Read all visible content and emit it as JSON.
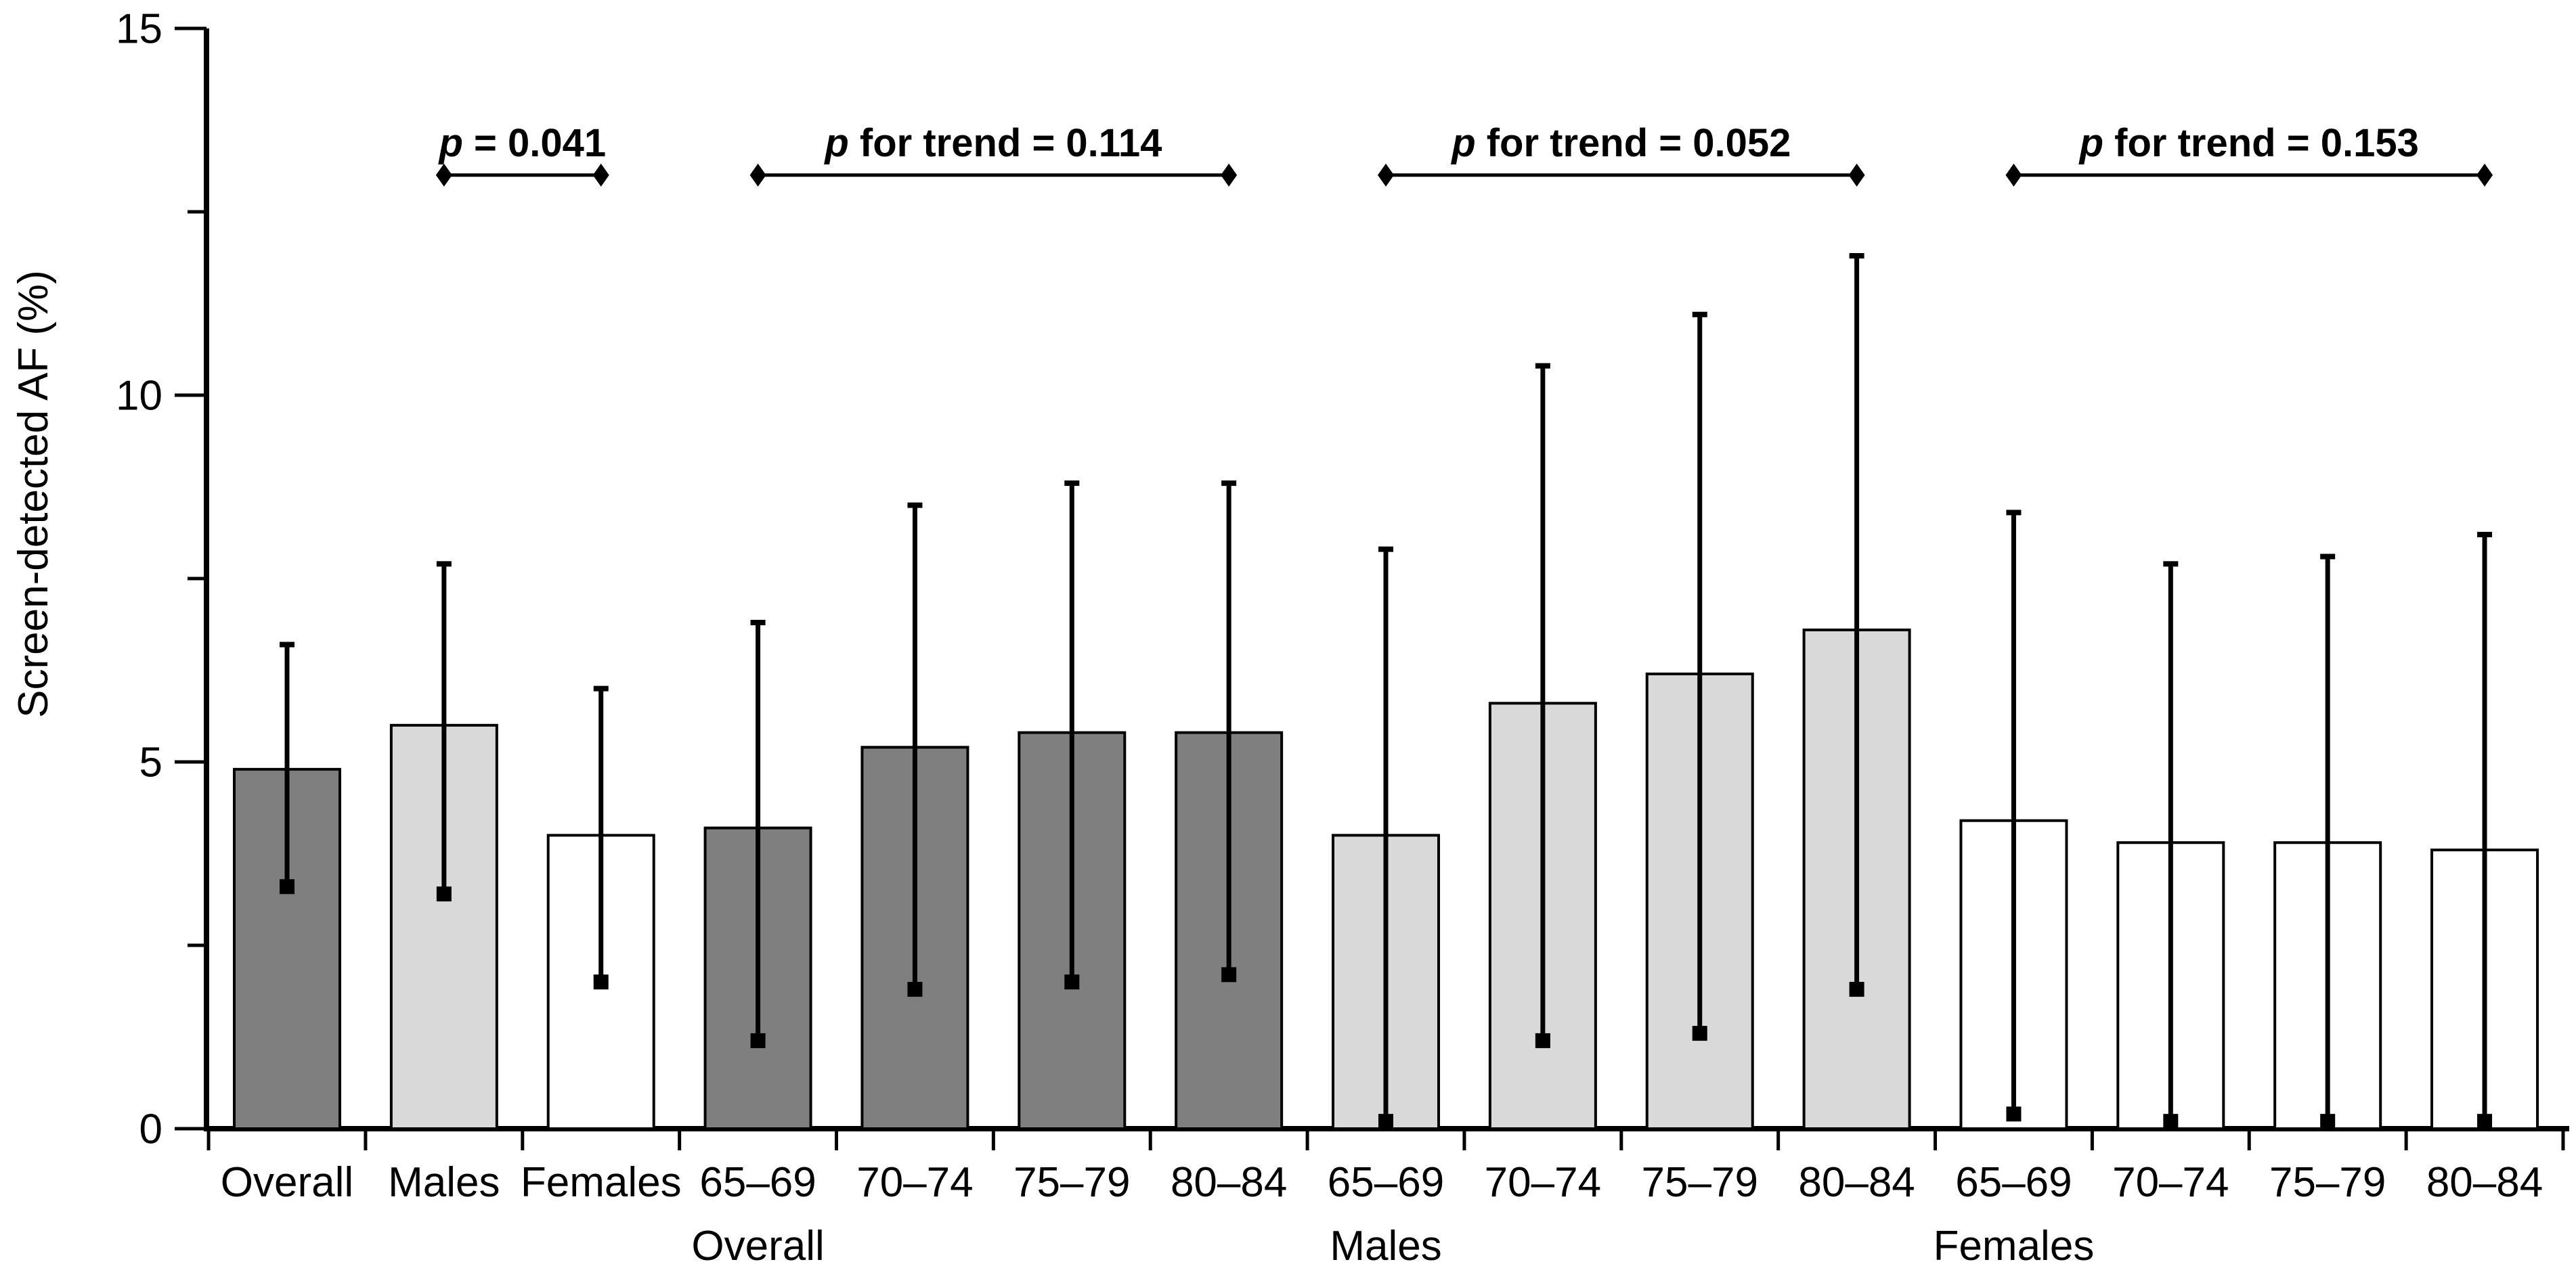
{
  "page": {
    "background_color": "#FFFFFF"
  },
  "chart_data": {
    "type": "bar",
    "title": "",
    "xlabel": "",
    "ylabel": "Screen-detected AF (%)",
    "ylim": [
      0,
      15
    ],
    "yticks_major": [
      0,
      5,
      10,
      15
    ],
    "yticks_minor": [
      2.5,
      7.5,
      12.5
    ],
    "grid": false,
    "legend": "none",
    "error_bars": "asymmetric caps: dash on top, filled square on bottom",
    "fill_colors": {
      "dark": "#7F7F7F",
      "light": "#D9D9D9",
      "white": "#FFFFFF"
    },
    "bar_border_color": "#000000",
    "error_bar_color": "#000000",
    "annotation_color": "#000000",
    "bars": [
      {
        "category": "Overall",
        "group": "",
        "fill": "dark",
        "value": 4.9,
        "ci_low": 3.3,
        "ci_high": 6.6
      },
      {
        "category": "Males",
        "group": "",
        "fill": "light",
        "value": 5.5,
        "ci_low": 3.2,
        "ci_high": 7.7
      },
      {
        "category": "Females",
        "group": "",
        "fill": "white",
        "value": 4.0,
        "ci_low": 2.0,
        "ci_high": 6.0
      },
      {
        "category": "65–69",
        "group": "Overall",
        "fill": "dark",
        "value": 4.1,
        "ci_low": 1.2,
        "ci_high": 6.9
      },
      {
        "category": "70–74",
        "group": "Overall",
        "fill": "dark",
        "value": 5.2,
        "ci_low": 1.9,
        "ci_high": 8.5
      },
      {
        "category": "75–79",
        "group": "Overall",
        "fill": "dark",
        "value": 5.4,
        "ci_low": 2.0,
        "ci_high": 8.8
      },
      {
        "category": "80–84",
        "group": "Overall",
        "fill": "dark",
        "value": 5.4,
        "ci_low": 2.1,
        "ci_high": 8.8
      },
      {
        "category": "65–69",
        "group": "Males",
        "fill": "light",
        "value": 4.0,
        "ci_low": 0.1,
        "ci_high": 7.9
      },
      {
        "category": "70–74",
        "group": "Males",
        "fill": "light",
        "value": 5.8,
        "ci_low": 1.2,
        "ci_high": 10.4
      },
      {
        "category": "75–79",
        "group": "Males",
        "fill": "light",
        "value": 6.2,
        "ci_low": 1.3,
        "ci_high": 11.1
      },
      {
        "category": "80–84",
        "group": "Males",
        "fill": "light",
        "value": 6.8,
        "ci_low": 1.9,
        "ci_high": 11.9
      },
      {
        "category": "65–69",
        "group": "Females",
        "fill": "white",
        "value": 4.2,
        "ci_low": 0.2,
        "ci_high": 8.4
      },
      {
        "category": "70–74",
        "group": "Females",
        "fill": "white",
        "value": 3.9,
        "ci_low": 0.1,
        "ci_high": 7.7
      },
      {
        "category": "75–79",
        "group": "Females",
        "fill": "white",
        "value": 3.9,
        "ci_low": 0.1,
        "ci_high": 7.8
      },
      {
        "category": "80–84",
        "group": "Females",
        "fill": "white",
        "value": 3.8,
        "ci_low": 0.1,
        "ci_high": 8.1
      }
    ],
    "group_axis_labels": [
      {
        "label": "Overall",
        "under_bar": 3
      },
      {
        "label": "Males",
        "under_bar": 7
      },
      {
        "label": "Females",
        "under_bar": 11
      }
    ],
    "annotations": [
      {
        "text_italic": "p",
        "text_rest": " = 0.041",
        "from_bar": 1,
        "to_bar": 2,
        "y": 13.0
      },
      {
        "text_italic": "p",
        "text_rest": " for trend = 0.114",
        "from_bar": 3,
        "to_bar": 6,
        "y": 13.0
      },
      {
        "text_italic": "p",
        "text_rest": " for trend = 0.052",
        "from_bar": 7,
        "to_bar": 10,
        "y": 13.0
      },
      {
        "text_italic": "p",
        "text_rest": " for trend = 0.153",
        "from_bar": 11,
        "to_bar": 14,
        "y": 13.0
      }
    ]
  }
}
